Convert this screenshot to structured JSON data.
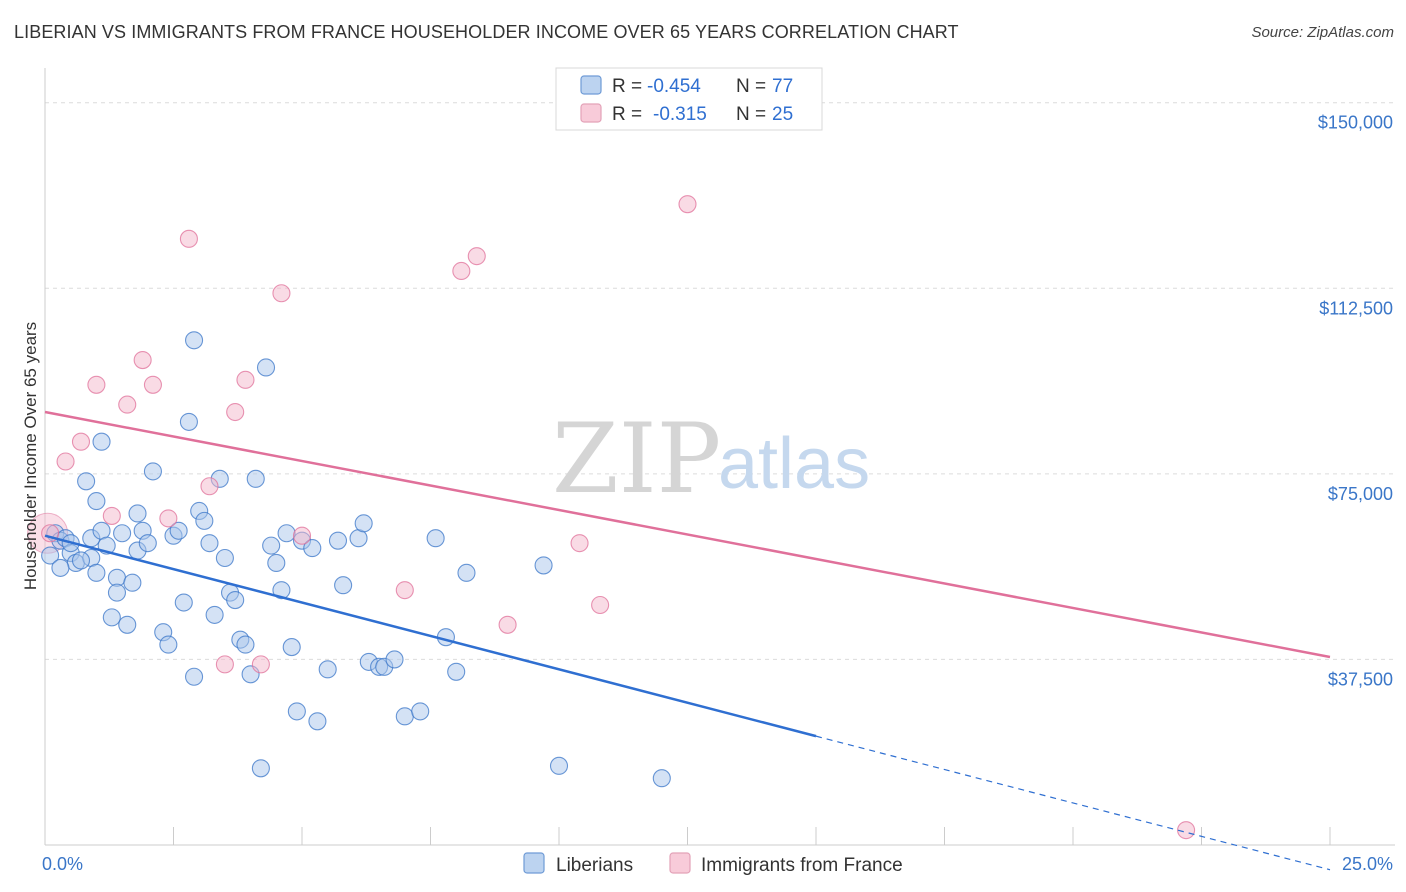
{
  "chart_data": {
    "type": "scatter",
    "title": "LIBERIAN VS IMMIGRANTS FROM FRANCE HOUSEHOLDER INCOME OVER 65 YEARS CORRELATION CHART",
    "source": "Source: ZipAtlas.com",
    "xlabel": "",
    "ylabel": "Householder Income Over 65 years",
    "xlim": [
      0,
      25
    ],
    "ylim": [
      0,
      155000
    ],
    "x_tick_labels": [
      "0.0%",
      "25.0%"
    ],
    "y_ticks": [
      37500,
      75000,
      112500,
      150000
    ],
    "y_tick_labels": [
      "$37,500",
      "$75,000",
      "$112,500",
      "$150,000"
    ],
    "watermark": {
      "zip": "ZIP",
      "atlas": "atlas"
    },
    "legend": {
      "rows": [
        {
          "r_label": "R = ",
          "r_value": "-0.454",
          "n_label": "N = ",
          "n_value": "77"
        },
        {
          "r_label": "R = ",
          "r_value": "-0.315",
          "n_label": "N = ",
          "n_value": "25"
        }
      ]
    },
    "series": [
      {
        "name": "Liberians",
        "color": "#3a76c8",
        "fill": "#a9c6ec",
        "trend": {
          "x0": 0,
          "y0": 62500,
          "x1": 15,
          "y1": 22000,
          "dash_to_x": 25,
          "dash_to_y": -5000
        },
        "points": [
          [
            0.1,
            58500
          ],
          [
            0.2,
            63000
          ],
          [
            0.3,
            61500
          ],
          [
            0.4,
            62000
          ],
          [
            0.5,
            59000
          ],
          [
            0.5,
            61000
          ],
          [
            0.6,
            57000
          ],
          [
            0.8,
            73500
          ],
          [
            0.9,
            62000
          ],
          [
            0.9,
            58000
          ],
          [
            1.0,
            69500
          ],
          [
            1.1,
            63500
          ],
          [
            1.1,
            81500
          ],
          [
            1.2,
            60500
          ],
          [
            1.3,
            46000
          ],
          [
            1.4,
            54000
          ],
          [
            1.4,
            51000
          ],
          [
            1.5,
            63000
          ],
          [
            1.6,
            44500
          ],
          [
            1.7,
            53000
          ],
          [
            1.8,
            67000
          ],
          [
            1.8,
            59500
          ],
          [
            1.9,
            63500
          ],
          [
            2.0,
            61000
          ],
          [
            2.1,
            75500
          ],
          [
            2.3,
            43000
          ],
          [
            2.4,
            40500
          ],
          [
            2.5,
            62500
          ],
          [
            2.6,
            63500
          ],
          [
            2.7,
            49000
          ],
          [
            2.8,
            85500
          ],
          [
            2.9,
            102000
          ],
          [
            2.9,
            34000
          ],
          [
            3.0,
            67500
          ],
          [
            3.1,
            65500
          ],
          [
            3.2,
            61000
          ],
          [
            3.3,
            46500
          ],
          [
            3.4,
            74000
          ],
          [
            3.5,
            58000
          ],
          [
            3.6,
            51000
          ],
          [
            3.7,
            49500
          ],
          [
            3.8,
            41500
          ],
          [
            3.9,
            40500
          ],
          [
            4.0,
            34500
          ],
          [
            4.1,
            74000
          ],
          [
            4.2,
            15500
          ],
          [
            4.3,
            96500
          ],
          [
            4.4,
            60500
          ],
          [
            4.5,
            57000
          ],
          [
            4.6,
            51500
          ],
          [
            4.7,
            63000
          ],
          [
            4.8,
            40000
          ],
          [
            4.9,
            27000
          ],
          [
            5.0,
            61500
          ],
          [
            5.2,
            60000
          ],
          [
            5.3,
            25000
          ],
          [
            5.5,
            35500
          ],
          [
            5.7,
            61500
          ],
          [
            5.8,
            52500
          ],
          [
            6.1,
            62000
          ],
          [
            6.2,
            65000
          ],
          [
            6.3,
            37000
          ],
          [
            6.5,
            36000
          ],
          [
            6.6,
            36000
          ],
          [
            6.8,
            37500
          ],
          [
            7.0,
            26000
          ],
          [
            7.3,
            27000
          ],
          [
            7.6,
            62000
          ],
          [
            7.8,
            42000
          ],
          [
            8.0,
            35000
          ],
          [
            8.2,
            55000
          ],
          [
            9.7,
            56500
          ],
          [
            10.0,
            16000
          ],
          [
            12.0,
            13500
          ],
          [
            0.3,
            56000
          ],
          [
            1.0,
            55000
          ],
          [
            0.7,
            57500
          ]
        ]
      },
      {
        "name": "Immigrants from France",
        "color": "#e0709a",
        "fill": "#f4b7cb",
        "trend": {
          "x0": 0,
          "y0": 87500,
          "x1": 25,
          "y1": 38000
        },
        "points": [
          [
            0.1,
            63000
          ],
          [
            0.4,
            77500
          ],
          [
            0.7,
            81500
          ],
          [
            1.0,
            93000
          ],
          [
            1.3,
            66500
          ],
          [
            1.6,
            89000
          ],
          [
            1.9,
            98000
          ],
          [
            2.1,
            93000
          ],
          [
            2.4,
            66000
          ],
          [
            2.8,
            122500
          ],
          [
            3.2,
            72500
          ],
          [
            3.5,
            36500
          ],
          [
            3.7,
            87500
          ],
          [
            3.9,
            94000
          ],
          [
            4.2,
            36500
          ],
          [
            4.6,
            111500
          ],
          [
            5.0,
            62500
          ],
          [
            7.0,
            51500
          ],
          [
            8.1,
            116000
          ],
          [
            8.4,
            119000
          ],
          [
            9.0,
            44500
          ],
          [
            10.4,
            61000
          ],
          [
            10.8,
            48500
          ],
          [
            12.5,
            129500
          ],
          [
            22.2,
            3000
          ]
        ]
      }
    ]
  }
}
